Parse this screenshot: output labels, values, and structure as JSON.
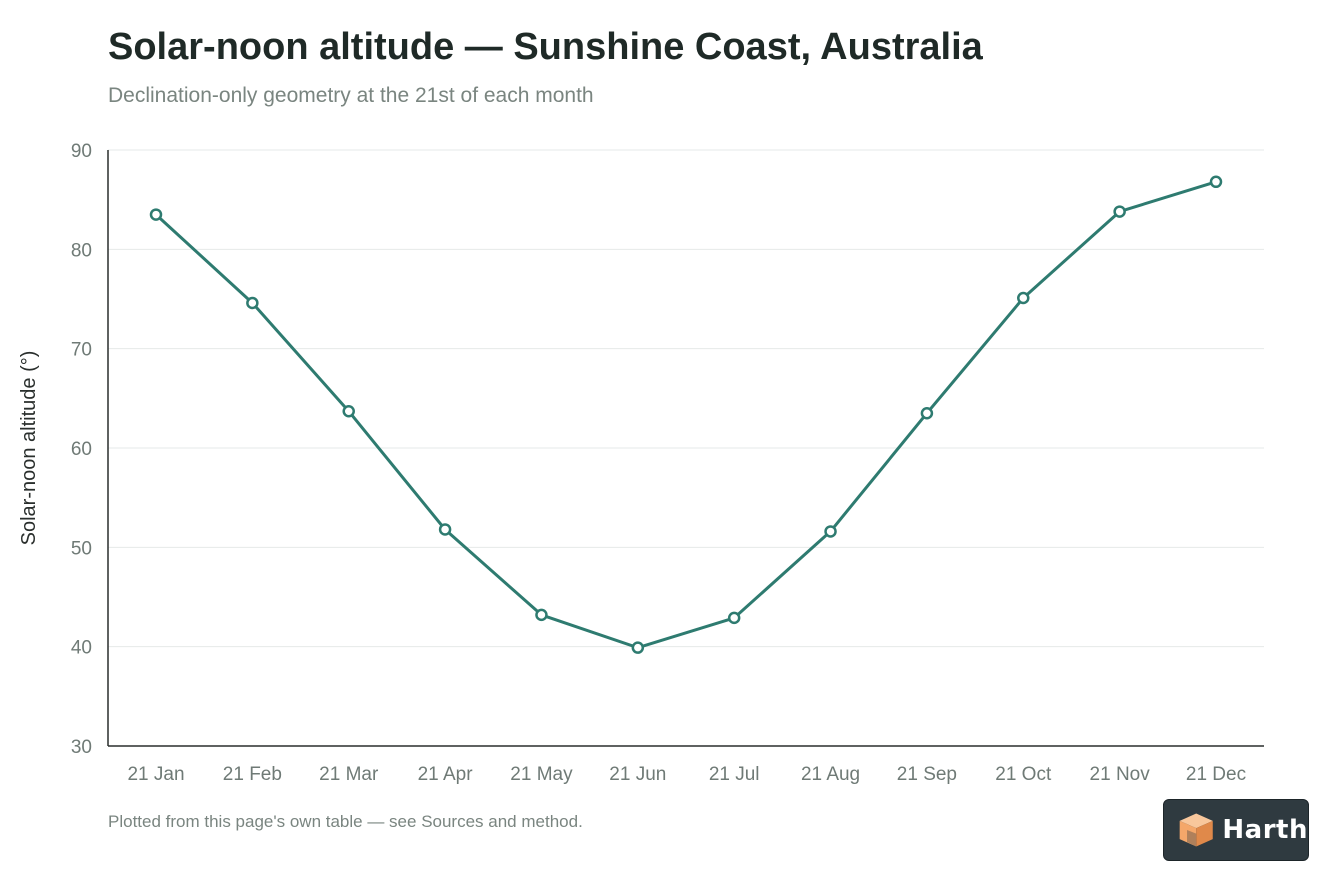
{
  "chart_data": {
    "type": "line",
    "title": "Solar-noon altitude — Sunshine Coast, Australia",
    "subtitle": "Declination-only geometry at the 21st of each month",
    "xlabel": "",
    "ylabel": "Solar-noon altitude (°)",
    "categories": [
      "21 Jan",
      "21 Feb",
      "21 Mar",
      "21 Apr",
      "21 May",
      "21 Jun",
      "21 Jul",
      "21 Aug",
      "21 Sep",
      "21 Oct",
      "21 Nov",
      "21 Dec"
    ],
    "series": [
      {
        "values": [
          83.5,
          74.6,
          63.7,
          51.8,
          43.2,
          39.9,
          42.9,
          51.6,
          63.5,
          75.1,
          83.8,
          86.8
        ]
      }
    ],
    "ylim": [
      30,
      90
    ],
    "yticks": [
      30,
      40,
      50,
      60,
      70,
      80,
      90
    ],
    "grid": true,
    "line_color": "#2e7b70",
    "footnote": "Plotted from this page's own table — see Sources and method."
  },
  "logo": {
    "text": "Harth",
    "icon": "cube-logo-icon",
    "background": "#2f3a40",
    "accent": "#f4a76a"
  }
}
